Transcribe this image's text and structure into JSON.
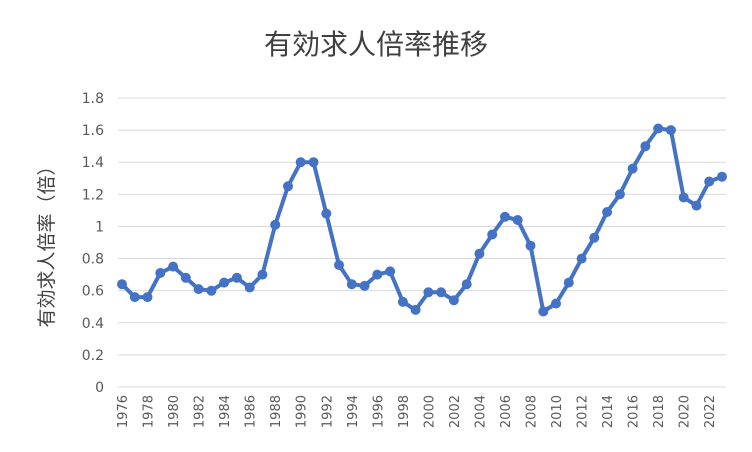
{
  "chart_data": {
    "type": "line",
    "title": "有効求人倍率推移",
    "ylabel": "有効求人倍率（倍）",
    "xlabel": "",
    "ylim": [
      0,
      1.8
    ],
    "yticks": [
      0,
      0.2,
      0.4,
      0.6,
      0.8,
      1,
      1.2,
      1.4,
      1.6,
      1.8
    ],
    "ytick_labels": [
      "0",
      "0.2",
      "0.4",
      "0.6",
      "0.8",
      "1",
      "1.2",
      "1.4",
      "1.6",
      "1.8"
    ],
    "xtick_labels": [
      "1976",
      "1978",
      "1980",
      "1982",
      "1984",
      "1986",
      "1988",
      "1990",
      "1992",
      "1994",
      "1996",
      "1998",
      "2000",
      "2002",
      "2004",
      "2006",
      "2008",
      "2010",
      "2012",
      "2014",
      "2016",
      "2018",
      "2020",
      "2022"
    ],
    "grid": true,
    "legend": "none",
    "color": "#4472c4",
    "x": [
      1976,
      1977,
      1978,
      1979,
      1980,
      1981,
      1982,
      1983,
      1984,
      1985,
      1986,
      1987,
      1988,
      1989,
      1990,
      1991,
      1992,
      1993,
      1994,
      1995,
      1996,
      1997,
      1998,
      1999,
      2000,
      2001,
      2002,
      2003,
      2004,
      2005,
      2006,
      2007,
      2008,
      2009,
      2010,
      2011,
      2012,
      2013,
      2014,
      2015,
      2016,
      2017,
      2018,
      2019,
      2020,
      2021,
      2022,
      2023
    ],
    "values": [
      0.64,
      0.56,
      0.56,
      0.71,
      0.75,
      0.68,
      0.61,
      0.6,
      0.65,
      0.68,
      0.62,
      0.7,
      1.01,
      1.25,
      1.4,
      1.4,
      1.08,
      0.76,
      0.64,
      0.63,
      0.7,
      0.72,
      0.53,
      0.48,
      0.59,
      0.59,
      0.54,
      0.64,
      0.83,
      0.95,
      1.06,
      1.04,
      0.88,
      0.47,
      0.52,
      0.65,
      0.8,
      0.93,
      1.09,
      1.2,
      1.36,
      1.5,
      1.61,
      1.6,
      1.18,
      1.13,
      1.28,
      1.31
    ]
  }
}
